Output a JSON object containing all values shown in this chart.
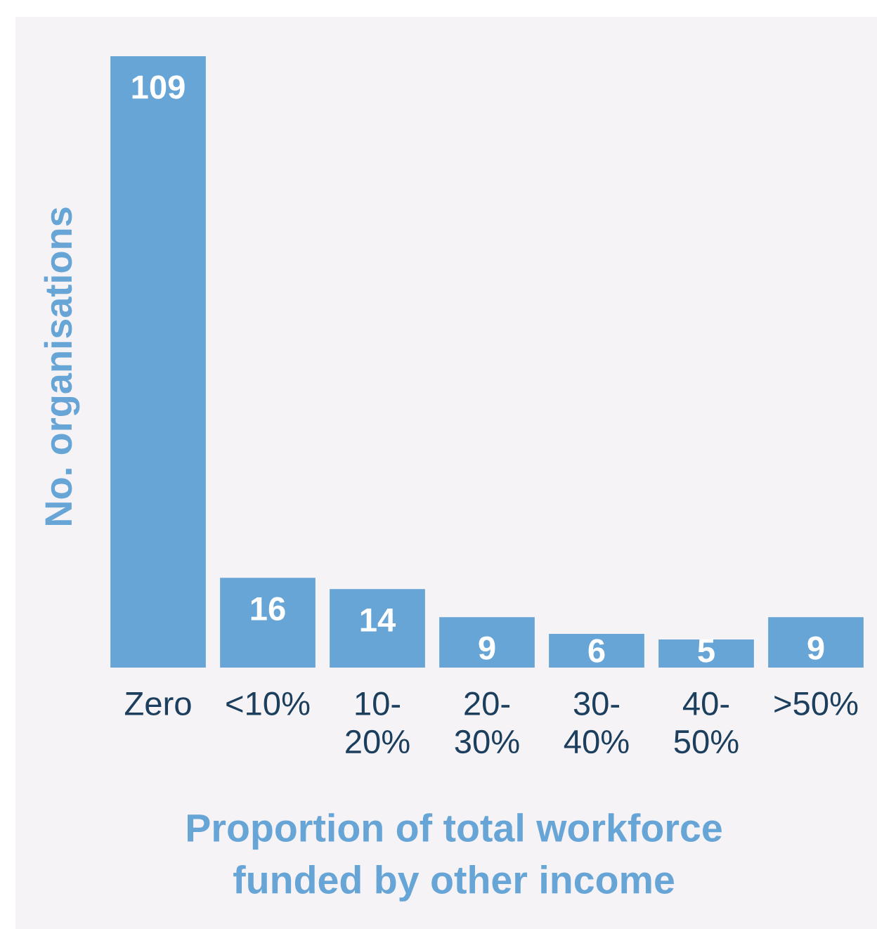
{
  "chart_data": {
    "type": "bar",
    "xlabel": "Proportion of total workforce\nfunded by other income",
    "ylabel": "No. organisations",
    "categories": [
      "Zero",
      "<10%",
      "10-\n20%",
      "20-\n30%",
      "30-\n40%",
      "40-\n50%",
      ">50%"
    ],
    "values": [
      109,
      16,
      14,
      9,
      6,
      5,
      9
    ],
    "color": "#68a5d7",
    "data_labels": true
  }
}
